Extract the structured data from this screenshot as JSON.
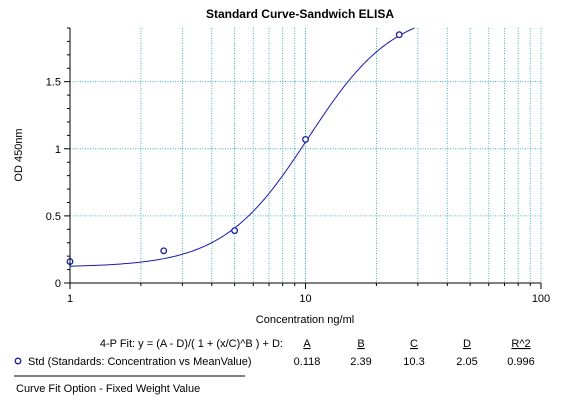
{
  "chart_data": {
    "type": "scatter",
    "title": "Standard Curve-Sandwich ELISA",
    "xlabel": "Concentration ng/ml",
    "ylabel": "OD 450nm",
    "x_scale": "log",
    "xlim": [
      1,
      100
    ],
    "ylim": [
      0,
      1.9
    ],
    "x_ticks": [
      {
        "value": 1,
        "label": "1"
      },
      {
        "value": 10,
        "label": "10"
      },
      {
        "value": 100,
        "label": "100"
      }
    ],
    "y_ticks": [
      {
        "value": 0,
        "label": "0"
      },
      {
        "value": 0.5,
        "label": "0.5"
      },
      {
        "value": 1,
        "label": "1"
      },
      {
        "value": 1.5,
        "label": "1.5"
      }
    ],
    "grid": true,
    "points": [
      {
        "x": 1,
        "y": 0.16
      },
      {
        "x": 2.5,
        "y": 0.24
      },
      {
        "x": 5,
        "y": 0.39
      },
      {
        "x": 10,
        "y": 1.07
      },
      {
        "x": 25,
        "y": 1.85
      }
    ],
    "fit": {
      "model": "4-P",
      "A": 0.118,
      "B": 2.39,
      "C": 10.3,
      "D": 2.05,
      "R2": 0.996
    },
    "colors": {
      "grid": "#1aa3a3",
      "series": "#1a1aa8",
      "axis": "#000000"
    }
  },
  "fit_table": {
    "equation": "4-P Fit: y = (A - D)/( 1 + (x/C)^B ) + D:",
    "headers": [
      "A",
      "B",
      "C",
      "D",
      "R^2"
    ],
    "row_label": "Std (Standards: Concentration vs MeanValue)",
    "values": [
      "0.118",
      "2.39",
      "10.3",
      "2.05",
      "0.996"
    ]
  },
  "footer": {
    "note": "Curve Fit Option - Fixed Weight Value"
  }
}
